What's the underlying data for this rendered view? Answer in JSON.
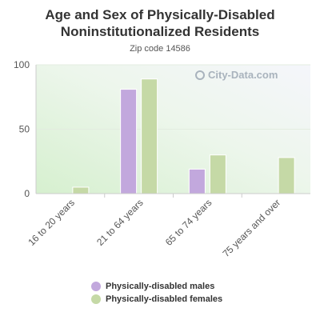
{
  "colors": {
    "males": "#c2a8dd",
    "females": "#c5d9a6",
    "axis_text": "#555555",
    "title": "#333333"
  },
  "watermark": {
    "text": "City-Data.com",
    "icon": "magnifier-icon"
  },
  "chart_data": {
    "type": "bar",
    "title": "Age and Sex of Physically-Disabled Noninstitutionalized Residents",
    "subtitle": "Zip code 14586",
    "categories": [
      "16 to 20 years",
      "21 to 64 years",
      "65 to 74 years",
      "75 years and over"
    ],
    "series": [
      {
        "name": "Physically-disabled males",
        "values": [
          0,
          81,
          19,
          0
        ]
      },
      {
        "name": "Physically-disabled females",
        "values": [
          5,
          89,
          30,
          28
        ]
      }
    ],
    "ylim": [
      0,
      100
    ],
    "yticks": [
      0,
      50,
      100
    ],
    "grid": true,
    "legend_position": "bottom"
  }
}
